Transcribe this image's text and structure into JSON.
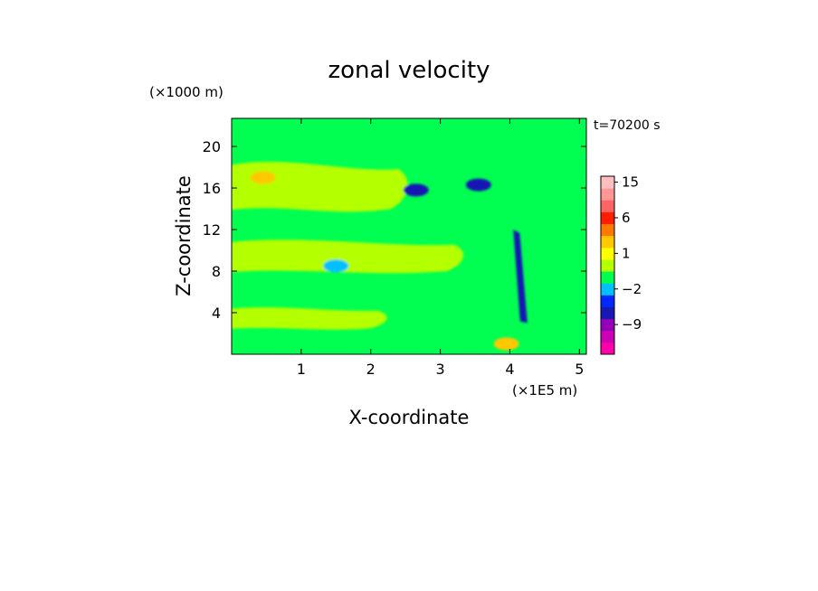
{
  "chart_data": {
    "type": "heatmap",
    "title": "zonal velocity",
    "xlabel": "X-coordinate",
    "ylabel": "Z-coordinate",
    "x_unit": "(×1E5 m)",
    "y_unit": "(×1000 m)",
    "time_label": "t=70200 s",
    "x_ticks": [
      1,
      2,
      3,
      4,
      5
    ],
    "y_ticks": [
      4,
      8,
      12,
      16,
      20
    ],
    "xlim": [
      0,
      5.1
    ],
    "ylim": [
      0,
      22.7
    ],
    "colorbar": {
      "labels": [
        "15",
        "6",
        "1",
        "−2",
        "−9"
      ],
      "label_levels": [
        15,
        6,
        1,
        -2,
        -9
      ],
      "levels": [
        -15,
        -12,
        -9,
        -6,
        -4,
        -2,
        -1,
        0,
        1,
        2,
        4,
        6,
        9,
        12,
        15,
        18
      ],
      "colors": [
        "#ff00aa",
        "#cc00b4",
        "#9400b8",
        "#1818b4",
        "#0028ff",
        "#00c0ff",
        "#00ff50",
        "#b4ff00",
        "#ffff00",
        "#ffc800",
        "#ff7800",
        "#ff1e00",
        "#ff6464",
        "#ff9696",
        "#ffbebe"
      ]
    },
    "features": [
      {
        "kind": "background",
        "value": -0.5,
        "note": "green"
      },
      {
        "kind": "band",
        "value": 0.5,
        "x": [
          0.0,
          2.1
        ],
        "z": [
          2.5,
          4.5
        ],
        "note": "yellow lower band"
      },
      {
        "kind": "band",
        "value": 0.5,
        "x": [
          0.0,
          3.2
        ],
        "z": [
          8.0,
          11.0
        ],
        "note": "yellow mid band"
      },
      {
        "kind": "band",
        "value": 0.5,
        "x": [
          0.0,
          2.4
        ],
        "z": [
          14.0,
          18.5
        ],
        "note": "yellow upper band"
      },
      {
        "kind": "blob",
        "value": 3,
        "x": 0.45,
        "z": 17.0,
        "note": "orange"
      },
      {
        "kind": "blob",
        "value": -1.5,
        "x": 1.5,
        "z": 8.5,
        "note": "cyan"
      },
      {
        "kind": "blob",
        "value": -5,
        "x": 3.55,
        "z": 16.3,
        "note": "blue"
      },
      {
        "kind": "blob",
        "value": -5,
        "x": 2.65,
        "z": 15.8,
        "note": "blue"
      },
      {
        "kind": "streak",
        "value": -5,
        "x": [
          4.05,
          4.2
        ],
        "z": [
          12.0,
          3.0
        ],
        "note": "blue vertical streak"
      },
      {
        "kind": "blob",
        "value": 3,
        "x": 3.95,
        "z": 1.0,
        "note": "orange lower right"
      }
    ]
  }
}
